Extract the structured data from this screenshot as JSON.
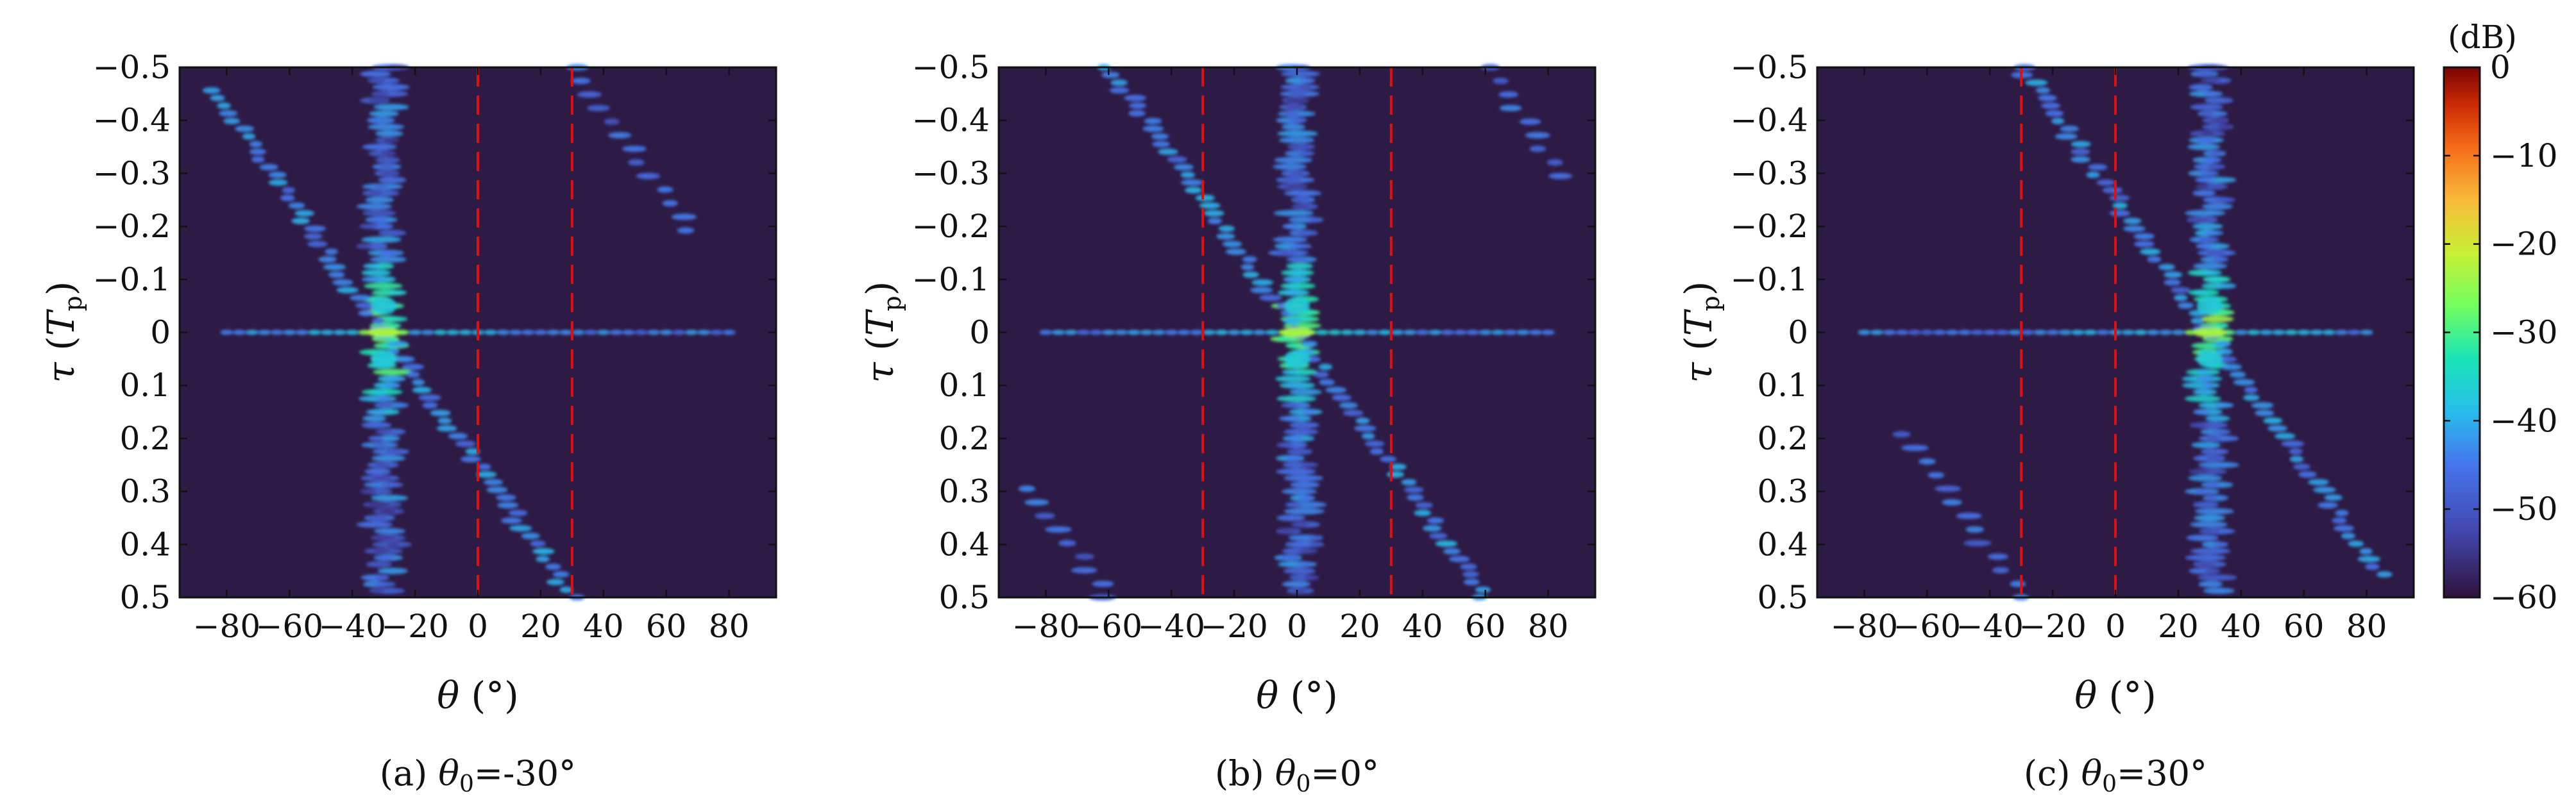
{
  "colors": {
    "background": "#2d1a45",
    "guide_line": "#e01010",
    "frame": "#111111"
  },
  "colorbar": {
    "unit": "(dB)",
    "ticks": [
      "0",
      "−10",
      "−20",
      "−30",
      "−40",
      "−50",
      "−60"
    ],
    "range": [
      -60,
      0
    ],
    "colormap": "turbo"
  },
  "chart_data": [
    {
      "type": "heatmap",
      "caption_prefix": "(a) ",
      "caption_var": "θ",
      "caption_sub": "0",
      "caption_value": "=-30°",
      "xlabel_var": "θ",
      "xlabel_unit": " (°)",
      "ylabel_var": "τ",
      "ylabel_sym": "T",
      "ylabel_sub": "p",
      "xlim": [
        -95,
        95
      ],
      "ylim": [
        -0.5,
        0.5
      ],
      "x_ticks": [
        "−80",
        "−60",
        "−40",
        "−20",
        "0",
        "20",
        "40",
        "60",
        "80"
      ],
      "y_ticks": [
        "−0.5",
        "−0.4",
        "−0.3",
        "−0.2",
        "−0.1",
        "0",
        "0.1",
        "0.2",
        "0.3",
        "0.4",
        "0.5"
      ],
      "steer_deg": -30,
      "guide_lines_deg": [
        0,
        30
      ]
    },
    {
      "type": "heatmap",
      "caption_prefix": "(b) ",
      "caption_var": "θ",
      "caption_sub": "0",
      "caption_value": "=0°",
      "xlabel_var": "θ",
      "xlabel_unit": " (°)",
      "ylabel_var": "τ",
      "ylabel_sym": "T",
      "ylabel_sub": "p",
      "xlim": [
        -95,
        95
      ],
      "ylim": [
        -0.5,
        0.5
      ],
      "x_ticks": [
        "−80",
        "−60",
        "−40",
        "−20",
        "0",
        "20",
        "40",
        "60",
        "80"
      ],
      "y_ticks": [
        "−0.5",
        "−0.4",
        "−0.3",
        "−0.2",
        "−0.1",
        "0",
        "0.1",
        "0.2",
        "0.3",
        "0.4",
        "0.5"
      ],
      "steer_deg": 0,
      "guide_lines_deg": [
        -30,
        30
      ]
    },
    {
      "type": "heatmap",
      "caption_prefix": "(c) ",
      "caption_var": "θ",
      "caption_sub": "0",
      "caption_value": "=30°",
      "xlabel_var": "θ",
      "xlabel_unit": " (°)",
      "ylabel_var": "τ",
      "ylabel_sym": "T",
      "ylabel_sub": "p",
      "xlim": [
        -95,
        95
      ],
      "ylim": [
        -0.5,
        0.5
      ],
      "x_ticks": [
        "−80",
        "−60",
        "−40",
        "−20",
        "0",
        "20",
        "40",
        "60",
        "80"
      ],
      "y_ticks": [
        "−0.5",
        "−0.4",
        "−0.3",
        "−0.2",
        "−0.1",
        "0",
        "0.1",
        "0.2",
        "0.3",
        "0.4",
        "0.5"
      ],
      "steer_deg": 30,
      "guide_lines_deg": [
        -30,
        0
      ]
    }
  ]
}
